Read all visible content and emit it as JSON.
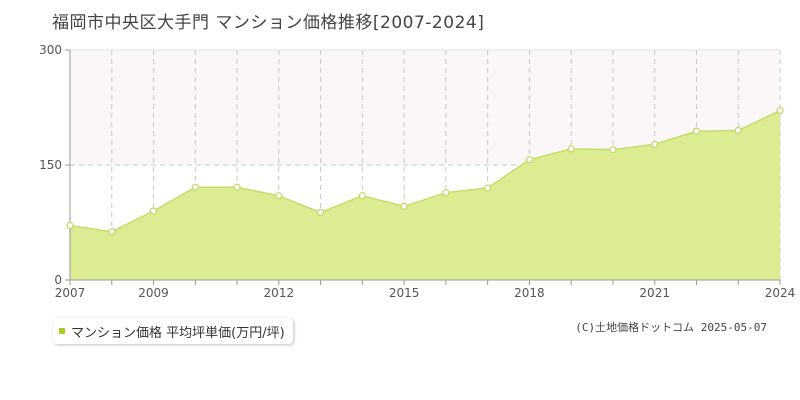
{
  "title": "福岡市中央区大手門 マンション価格推移[2007-2024]",
  "legend": {
    "label": "マンション価格 平均坪単価(万円/坪)",
    "color": "#aacc22"
  },
  "credit": "(C)土地価格ドットコム 2025-05-07",
  "colors": {
    "fill": "#dcec92",
    "line": "#c8dc6a",
    "point_stroke": "#c0d860",
    "upper_band": "#fbf7f8",
    "grid": "#c8c8c8",
    "axis": "#999999"
  },
  "chart_data": {
    "type": "area",
    "title": "福岡市中央区大手門 マンション価格推移[2007-2024]",
    "xlabel": "",
    "ylabel": "",
    "x": [
      2007,
      2008,
      2009,
      2010,
      2011,
      2012,
      2013,
      2014,
      2015,
      2016,
      2017,
      2018,
      2019,
      2020,
      2021,
      2022,
      2023,
      2024
    ],
    "x_tick_labels": [
      "2007",
      "2009",
      "2012",
      "2015",
      "2018",
      "2021",
      "2024"
    ],
    "y_tick_labels": [
      "0",
      "150",
      "300"
    ],
    "ylim": [
      0,
      300
    ],
    "grid": true,
    "series": [
      {
        "name": "マンション価格 平均坪単価(万円/坪)",
        "values": [
          71,
          63,
          90,
          121,
          121,
          110,
          88,
          110,
          96,
          114,
          120,
          157,
          171,
          170,
          177,
          194,
          195,
          221
        ]
      }
    ]
  }
}
